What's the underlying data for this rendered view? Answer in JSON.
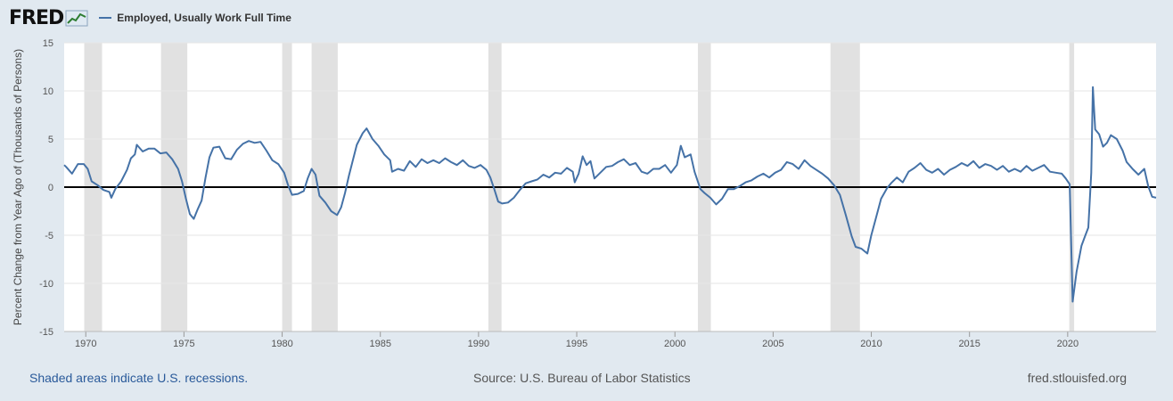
{
  "header": {
    "logo_text": "FRED",
    "logo_icon": "fred-graph-icon"
  },
  "footer": {
    "recession_note": "Shaded areas indicate U.S. recessions.",
    "source": "Source: U.S. Bureau of Labor Statistics",
    "site": "fred.stlouisfed.org"
  },
  "colors": {
    "series": "#4572a7",
    "recession": "#e1e1e1",
    "background": "#e1e9f0",
    "plot": "#ffffff",
    "zero_line": "#000000"
  },
  "chart_data": {
    "type": "line",
    "title": "",
    "xlabel": "",
    "ylabel": "Percent Change from Year Ago of (Thousands of Persons)",
    "xlim": [
      1968.9,
      2024.5
    ],
    "ylim": [
      -15,
      15
    ],
    "x_ticks": [
      "1970",
      "1975",
      "1980",
      "1985",
      "1990",
      "1995",
      "2000",
      "2005",
      "2010",
      "2015",
      "2020"
    ],
    "y_ticks": [
      "15",
      "10",
      "5",
      "0",
      "-5",
      "-10",
      "-15"
    ],
    "grid": true,
    "legend_position": "top-left",
    "recessions": [
      [
        1969.92,
        1970.83
      ],
      [
        1973.83,
        1975.17
      ],
      [
        1980.0,
        1980.5
      ],
      [
        1981.5,
        1982.83
      ],
      [
        1990.5,
        1991.17
      ],
      [
        2001.17,
        2001.83
      ],
      [
        2007.92,
        2009.42
      ],
      [
        2020.08,
        2020.33
      ]
    ],
    "series": [
      {
        "name": "Employed, Usually Work Full Time",
        "points": [
          [
            1968.9,
            2.3
          ],
          [
            1969.0,
            2.1
          ],
          [
            1969.3,
            1.4
          ],
          [
            1969.6,
            2.4
          ],
          [
            1969.9,
            2.4
          ],
          [
            1970.1,
            1.9
          ],
          [
            1970.3,
            0.6
          ],
          [
            1970.6,
            0.2
          ],
          [
            1970.9,
            -0.3
          ],
          [
            1971.2,
            -0.5
          ],
          [
            1971.3,
            -1.1
          ],
          [
            1971.5,
            -0.2
          ],
          [
            1971.8,
            0.6
          ],
          [
            1972.1,
            1.8
          ],
          [
            1972.3,
            3.0
          ],
          [
            1972.5,
            3.4
          ],
          [
            1972.6,
            4.4
          ],
          [
            1972.9,
            3.7
          ],
          [
            1973.2,
            4.0
          ],
          [
            1973.5,
            4.0
          ],
          [
            1973.8,
            3.5
          ],
          [
            1974.1,
            3.6
          ],
          [
            1974.4,
            2.9
          ],
          [
            1974.7,
            1.9
          ],
          [
            1974.9,
            0.6
          ],
          [
            1975.1,
            -1.2
          ],
          [
            1975.3,
            -2.8
          ],
          [
            1975.5,
            -3.3
          ],
          [
            1975.7,
            -2.3
          ],
          [
            1975.9,
            -1.4
          ],
          [
            1976.1,
            1.0
          ],
          [
            1976.3,
            3.1
          ],
          [
            1976.5,
            4.1
          ],
          [
            1976.8,
            4.2
          ],
          [
            1977.1,
            3.0
          ],
          [
            1977.4,
            2.9
          ],
          [
            1977.7,
            3.9
          ],
          [
            1978.0,
            4.5
          ],
          [
            1978.3,
            4.8
          ],
          [
            1978.6,
            4.6
          ],
          [
            1978.9,
            4.7
          ],
          [
            1979.2,
            3.8
          ],
          [
            1979.5,
            2.8
          ],
          [
            1979.8,
            2.4
          ],
          [
            1980.1,
            1.5
          ],
          [
            1980.3,
            0.2
          ],
          [
            1980.5,
            -0.8
          ],
          [
            1980.8,
            -0.7
          ],
          [
            1981.1,
            -0.4
          ],
          [
            1981.3,
            0.9
          ],
          [
            1981.5,
            1.9
          ],
          [
            1981.7,
            1.3
          ],
          [
            1981.9,
            -0.9
          ],
          [
            1982.2,
            -1.6
          ],
          [
            1982.5,
            -2.5
          ],
          [
            1982.8,
            -2.9
          ],
          [
            1983.0,
            -2.1
          ],
          [
            1983.2,
            -0.6
          ],
          [
            1983.4,
            1.2
          ],
          [
            1983.6,
            2.8
          ],
          [
            1983.8,
            4.4
          ],
          [
            1984.1,
            5.6
          ],
          [
            1984.3,
            6.1
          ],
          [
            1984.6,
            5.0
          ],
          [
            1984.9,
            4.3
          ],
          [
            1985.2,
            3.4
          ],
          [
            1985.5,
            2.8
          ],
          [
            1985.6,
            1.6
          ],
          [
            1985.9,
            1.9
          ],
          [
            1986.2,
            1.7
          ],
          [
            1986.5,
            2.7
          ],
          [
            1986.8,
            2.1
          ],
          [
            1987.1,
            2.9
          ],
          [
            1987.4,
            2.5
          ],
          [
            1987.7,
            2.8
          ],
          [
            1988.0,
            2.5
          ],
          [
            1988.3,
            3.0
          ],
          [
            1988.6,
            2.6
          ],
          [
            1988.9,
            2.3
          ],
          [
            1989.2,
            2.8
          ],
          [
            1989.5,
            2.2
          ],
          [
            1989.8,
            2.0
          ],
          [
            1990.1,
            2.3
          ],
          [
            1990.4,
            1.8
          ],
          [
            1990.6,
            1.0
          ],
          [
            1990.8,
            -0.2
          ],
          [
            1991.0,
            -1.5
          ],
          [
            1991.2,
            -1.7
          ],
          [
            1991.5,
            -1.6
          ],
          [
            1991.8,
            -1.1
          ],
          [
            1992.1,
            -0.3
          ],
          [
            1992.4,
            0.4
          ],
          [
            1992.7,
            0.6
          ],
          [
            1993.0,
            0.8
          ],
          [
            1993.3,
            1.3
          ],
          [
            1993.6,
            1.0
          ],
          [
            1993.9,
            1.5
          ],
          [
            1994.2,
            1.4
          ],
          [
            1994.5,
            2.0
          ],
          [
            1994.8,
            1.6
          ],
          [
            1994.9,
            0.5
          ],
          [
            1995.1,
            1.4
          ],
          [
            1995.3,
            3.2
          ],
          [
            1995.5,
            2.3
          ],
          [
            1995.7,
            2.7
          ],
          [
            1995.9,
            0.9
          ],
          [
            1996.2,
            1.5
          ],
          [
            1996.5,
            2.1
          ],
          [
            1996.8,
            2.2
          ],
          [
            1997.1,
            2.6
          ],
          [
            1997.4,
            2.9
          ],
          [
            1997.7,
            2.3
          ],
          [
            1998.0,
            2.5
          ],
          [
            1998.3,
            1.6
          ],
          [
            1998.6,
            1.4
          ],
          [
            1998.9,
            1.9
          ],
          [
            1999.2,
            1.9
          ],
          [
            1999.5,
            2.3
          ],
          [
            1999.8,
            1.5
          ],
          [
            2000.1,
            2.3
          ],
          [
            2000.3,
            4.3
          ],
          [
            2000.5,
            3.1
          ],
          [
            2000.8,
            3.4
          ],
          [
            2001.0,
            1.6
          ],
          [
            2001.3,
            -0.2
          ],
          [
            2001.5,
            -0.6
          ],
          [
            2001.8,
            -1.1
          ],
          [
            2002.1,
            -1.8
          ],
          [
            2002.4,
            -1.2
          ],
          [
            2002.7,
            -0.2
          ],
          [
            2003.0,
            -0.2
          ],
          [
            2003.3,
            0.1
          ],
          [
            2003.6,
            0.5
          ],
          [
            2003.9,
            0.7
          ],
          [
            2004.2,
            1.1
          ],
          [
            2004.5,
            1.4
          ],
          [
            2004.8,
            1.0
          ],
          [
            2005.1,
            1.5
          ],
          [
            2005.4,
            1.8
          ],
          [
            2005.7,
            2.6
          ],
          [
            2006.0,
            2.4
          ],
          [
            2006.3,
            1.9
          ],
          [
            2006.6,
            2.8
          ],
          [
            2006.9,
            2.2
          ],
          [
            2007.2,
            1.8
          ],
          [
            2007.5,
            1.4
          ],
          [
            2007.8,
            0.9
          ],
          [
            2008.1,
            0.2
          ],
          [
            2008.4,
            -0.8
          ],
          [
            2008.7,
            -2.9
          ],
          [
            2009.0,
            -5.1
          ],
          [
            2009.2,
            -6.2
          ],
          [
            2009.5,
            -6.4
          ],
          [
            2009.8,
            -6.9
          ],
          [
            2010.0,
            -5.0
          ],
          [
            2010.2,
            -3.5
          ],
          [
            2010.5,
            -1.2
          ],
          [
            2010.8,
            -0.1
          ],
          [
            2011.0,
            0.4
          ],
          [
            2011.3,
            1.0
          ],
          [
            2011.6,
            0.5
          ],
          [
            2011.9,
            1.6
          ],
          [
            2012.2,
            2.0
          ],
          [
            2012.5,
            2.5
          ],
          [
            2012.8,
            1.8
          ],
          [
            2013.1,
            1.5
          ],
          [
            2013.4,
            1.9
          ],
          [
            2013.7,
            1.3
          ],
          [
            2014.0,
            1.8
          ],
          [
            2014.3,
            2.1
          ],
          [
            2014.6,
            2.5
          ],
          [
            2014.9,
            2.2
          ],
          [
            2015.2,
            2.7
          ],
          [
            2015.5,
            2.0
          ],
          [
            2015.8,
            2.4
          ],
          [
            2016.1,
            2.2
          ],
          [
            2016.4,
            1.8
          ],
          [
            2016.7,
            2.2
          ],
          [
            2017.0,
            1.6
          ],
          [
            2017.3,
            1.9
          ],
          [
            2017.6,
            1.6
          ],
          [
            2017.9,
            2.2
          ],
          [
            2018.2,
            1.7
          ],
          [
            2018.5,
            2.0
          ],
          [
            2018.8,
            2.3
          ],
          [
            2019.1,
            1.6
          ],
          [
            2019.4,
            1.5
          ],
          [
            2019.7,
            1.4
          ],
          [
            2019.9,
            0.9
          ],
          [
            2020.1,
            0.3
          ],
          [
            2020.25,
            -11.9
          ],
          [
            2020.45,
            -8.8
          ],
          [
            2020.7,
            -6.1
          ],
          [
            2020.9,
            -5.0
          ],
          [
            2021.05,
            -4.2
          ],
          [
            2021.2,
            1.5
          ],
          [
            2021.28,
            10.4
          ],
          [
            2021.4,
            6.0
          ],
          [
            2021.6,
            5.5
          ],
          [
            2021.8,
            4.2
          ],
          [
            2022.0,
            4.6
          ],
          [
            2022.2,
            5.4
          ],
          [
            2022.5,
            5.0
          ],
          [
            2022.8,
            3.8
          ],
          [
            2023.0,
            2.6
          ],
          [
            2023.3,
            1.9
          ],
          [
            2023.6,
            1.3
          ],
          [
            2023.9,
            1.9
          ],
          [
            2024.1,
            0.1
          ],
          [
            2024.3,
            -1.0
          ],
          [
            2024.5,
            -1.1
          ]
        ]
      }
    ]
  }
}
